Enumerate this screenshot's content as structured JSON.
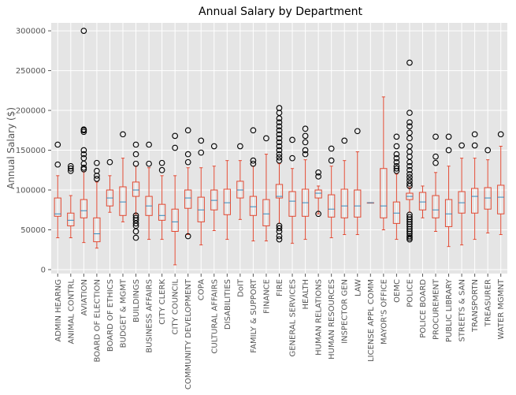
{
  "chart_data": {
    "type": "boxplot",
    "title": "Annual Salary by Department",
    "xlabel": "",
    "ylabel": "Annual Salary ($)",
    "ylim": [
      -5000,
      310000
    ],
    "yticks": [
      0,
      50000,
      100000,
      150000,
      200000,
      250000,
      300000
    ],
    "grid": true,
    "colors": {
      "background": "#E5E5E5",
      "grid": "#FFFFFF",
      "box": "#E24A33",
      "median": "#348ABD",
      "flier": "#000000",
      "tick_text": "#555555"
    },
    "boxes": [
      {
        "category": "ADMIN HEARNG",
        "whislo": 40000,
        "q1": 67000,
        "med": 70000,
        "q3": 90000,
        "whishi": 118000,
        "fliers": [
          132000,
          157000
        ]
      },
      {
        "category": "ANIMAL CONTRL",
        "whislo": 40000,
        "q1": 55000,
        "med": 62000,
        "q3": 71000,
        "whishi": 93000,
        "fliers": [
          124000,
          127000,
          130000
        ]
      },
      {
        "category": "AVIATION",
        "whislo": 34000,
        "q1": 65000,
        "med": 74000,
        "q3": 88000,
        "whishi": 123000,
        "fliers": [
          126000,
          128000,
          133000,
          140000,
          145000,
          150000,
          173000,
          175000,
          176000,
          300000
        ]
      },
      {
        "category": "BOARD OF ELECTION",
        "whislo": 27000,
        "q1": 35000,
        "med": 45000,
        "q3": 65000,
        "whishi": 110000,
        "fliers": [
          114000,
          118000,
          124000,
          134000
        ]
      },
      {
        "category": "BOARD OF ETHICS",
        "whislo": 72000,
        "q1": 80000,
        "med": 90000,
        "q3": 100000,
        "whishi": 118000,
        "fliers": [
          135000
        ]
      },
      {
        "category": "BUDGET & MGMT",
        "whislo": 60000,
        "q1": 68000,
        "med": 85000,
        "q3": 104000,
        "whishi": 140000,
        "fliers": [
          170000
        ]
      },
      {
        "category": "BUILDINGS",
        "whislo": 70000,
        "q1": 92000,
        "med": 100000,
        "q3": 110000,
        "whishi": 130000,
        "fliers": [
          40000,
          48000,
          55000,
          58000,
          62000,
          65000,
          68000,
          133000,
          145000,
          157000
        ]
      },
      {
        "category": "BUSINESS AFFAIRS",
        "whislo": 38000,
        "q1": 68000,
        "med": 80000,
        "q3": 92000,
        "whishi": 128000,
        "fliers": [
          133000,
          157000
        ]
      },
      {
        "category": "CITY CLERK",
        "whislo": 38000,
        "q1": 62000,
        "med": 68000,
        "q3": 82000,
        "whishi": 118000,
        "fliers": [
          125000,
          134000
        ]
      },
      {
        "category": "CITY COUNCIL",
        "whislo": 6000,
        "q1": 48000,
        "med": 60000,
        "q3": 76000,
        "whishi": 118000,
        "fliers": [
          153000,
          168000
        ]
      },
      {
        "category": "COMMUNITY DEVELOPMENT",
        "whislo": 44000,
        "q1": 77000,
        "med": 90000,
        "q3": 100000,
        "whishi": 128000,
        "fliers": [
          42000,
          135000,
          145000,
          175000
        ]
      },
      {
        "category": "COPA",
        "whislo": 31000,
        "q1": 60000,
        "med": 75000,
        "q3": 91000,
        "whishi": 128000,
        "fliers": [
          147000,
          162000
        ]
      },
      {
        "category": "CULTURAL AFFAIRS",
        "whislo": 49000,
        "q1": 75000,
        "med": 87000,
        "q3": 100000,
        "whishi": 130000,
        "fliers": [
          155000
        ]
      },
      {
        "category": "DISABILITIES",
        "whislo": 38000,
        "q1": 69000,
        "med": 84000,
        "q3": 101000,
        "whishi": 137000,
        "fliers": []
      },
      {
        "category": "DoIT",
        "whislo": 63000,
        "q1": 90000,
        "med": 100000,
        "q3": 111000,
        "whishi": 137000,
        "fliers": [
          155000
        ]
      },
      {
        "category": "FAMILY & SUPPORT",
        "whislo": 36000,
        "q1": 68000,
        "med": 79000,
        "q3": 92000,
        "whishi": 130000,
        "fliers": [
          133000,
          137000,
          175000
        ]
      },
      {
        "category": "FINANCE",
        "whislo": 36000,
        "q1": 55000,
        "med": 70000,
        "q3": 88000,
        "whishi": 145000,
        "fliers": [
          165000
        ]
      },
      {
        "category": "FIRE",
        "whislo": 58000,
        "q1": 90000,
        "med": 92000,
        "q3": 107000,
        "whishi": 133000,
        "fliers": [
          38000,
          42000,
          48000,
          52000,
          55000,
          137000,
          141000,
          145000,
          150000,
          155000,
          160000,
          165000,
          170000,
          175000,
          180000,
          185000,
          190000,
          197000,
          203000
        ]
      },
      {
        "category": "GENERAL SERVICES",
        "whislo": 33000,
        "q1": 67000,
        "med": 86000,
        "q3": 98000,
        "whishi": 127000,
        "fliers": [
          140000,
          163000
        ]
      },
      {
        "category": "HEALTH",
        "whislo": 38000,
        "q1": 67000,
        "med": 84000,
        "q3": 101000,
        "whishi": 138000,
        "fliers": [
          145000,
          150000,
          160000,
          168000,
          177000
        ]
      },
      {
        "category": "HUMAN RELATIONS",
        "whislo": 70000,
        "q1": 90000,
        "med": 96000,
        "q3": 100000,
        "whishi": 105000,
        "fliers": [
          70000,
          117000,
          122000
        ]
      },
      {
        "category": "HUMAN RESOURCES",
        "whislo": 40000,
        "q1": 66000,
        "med": 76000,
        "q3": 94000,
        "whishi": 130000,
        "fliers": [
          137000,
          152000
        ]
      },
      {
        "category": "INSPECTOR GEN",
        "whislo": 44000,
        "q1": 65000,
        "med": 80000,
        "q3": 101000,
        "whishi": 137000,
        "fliers": [
          162000
        ]
      },
      {
        "category": "LAW",
        "whislo": 44000,
        "q1": 66000,
        "med": 80000,
        "q3": 100000,
        "whishi": 148000,
        "fliers": [
          174000
        ]
      },
      {
        "category": "LICENSE APPL COMM",
        "whislo": 84000,
        "q1": 84000,
        "med": 84000,
        "q3": 84000,
        "whishi": 84000,
        "fliers": []
      },
      {
        "category": "MAYOR'S OFFICE",
        "whislo": 50000,
        "q1": 65000,
        "med": 80000,
        "q3": 127000,
        "whishi": 217000,
        "fliers": []
      },
      {
        "category": "OEMC",
        "whislo": 38000,
        "q1": 58000,
        "med": 71000,
        "q3": 85000,
        "whishi": 120000,
        "fliers": [
          124000,
          127000,
          130000,
          135000,
          140000,
          145000,
          155000,
          167000
        ]
      },
      {
        "category": "POLICE",
        "whislo": 72000,
        "q1": 88000,
        "med": 92000,
        "q3": 96000,
        "whishi": 103000,
        "fliers": [
          38000,
          40000,
          42000,
          45000,
          48000,
          51000,
          54000,
          57000,
          60000,
          63000,
          66000,
          69000,
          105000,
          108000,
          112000,
          116000,
          120000,
          125000,
          130000,
          135000,
          142000,
          148000,
          155000,
          165000,
          172000,
          180000,
          185000,
          197000,
          260000
        ]
      },
      {
        "category": "POLICE BOARD",
        "whislo": 65000,
        "q1": 75000,
        "med": 85000,
        "q3": 97000,
        "whishi": 105000,
        "fliers": []
      },
      {
        "category": "PROCUREMENT",
        "whislo": 48000,
        "q1": 65000,
        "med": 75000,
        "q3": 93000,
        "whishi": 122000,
        "fliers": [
          134000,
          142000,
          167000
        ]
      },
      {
        "category": "PUBLIC LIBRARY",
        "whislo": 29000,
        "q1": 54000,
        "med": 70000,
        "q3": 88000,
        "whishi": 130000,
        "fliers": [
          150000,
          167000
        ]
      },
      {
        "category": "STREETS & SAN",
        "whislo": 31000,
        "q1": 71000,
        "med": 84000,
        "q3": 98000,
        "whishi": 140000,
        "fliers": [
          156000
        ]
      },
      {
        "category": "TRANSPORTN",
        "whislo": 38000,
        "q1": 71000,
        "med": 92000,
        "q3": 102000,
        "whishi": 140000,
        "fliers": [
          156000,
          170000
        ]
      },
      {
        "category": "TREASURER",
        "whislo": 46000,
        "q1": 76000,
        "med": 90000,
        "q3": 103000,
        "whishi": 138000,
        "fliers": [
          150000
        ]
      },
      {
        "category": "WATER MGMNT",
        "whislo": 44000,
        "q1": 70000,
        "med": 91000,
        "q3": 106000,
        "whishi": 155000,
        "fliers": [
          170000
        ]
      }
    ]
  }
}
